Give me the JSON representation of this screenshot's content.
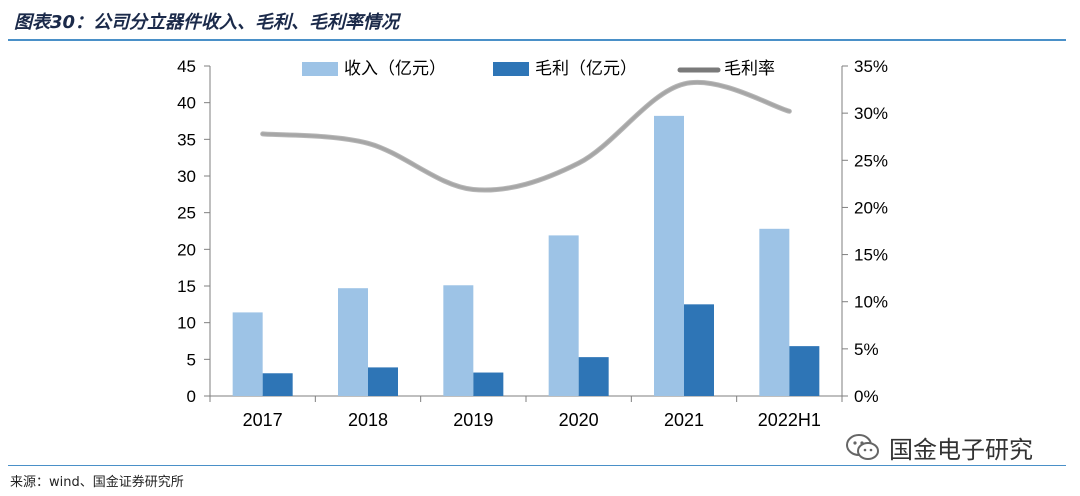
{
  "header": {
    "title": "图表30：公司分立器件收入、毛利、毛利率情况"
  },
  "footer": {
    "source": "来源：wind、国金证券研究所"
  },
  "watermark": {
    "text": "国金电子研究",
    "icon": "wechat-icon"
  },
  "colors": {
    "revenue": "#9dc3e6",
    "gross_profit": "#2e75b6",
    "margin_line": "#a6a6a6",
    "rule": "#4a90c8"
  },
  "chart_data": {
    "type": "bar",
    "categories": [
      "2017",
      "2018",
      "2019",
      "2020",
      "2021",
      "2022H1"
    ],
    "series": [
      {
        "name": "收入（亿元）",
        "type": "bar",
        "axis": "left",
        "values": [
          11.4,
          14.7,
          15.1,
          21.9,
          38.2,
          22.8
        ]
      },
      {
        "name": "毛利（亿元）",
        "type": "bar",
        "axis": "left",
        "values": [
          3.1,
          3.9,
          3.2,
          5.3,
          12.5,
          6.8
        ]
      },
      {
        "name": "毛利率",
        "type": "line",
        "axis": "right",
        "values": [
          0.278,
          0.268,
          0.219,
          0.247,
          0.331,
          0.302
        ]
      }
    ],
    "left_axis": {
      "min": 0,
      "max": 45,
      "step": 5,
      "ticks": [
        "0",
        "5",
        "10",
        "15",
        "20",
        "25",
        "30",
        "35",
        "40",
        "45"
      ]
    },
    "right_axis": {
      "min": 0,
      "max": 0.35,
      "step": 0.05,
      "ticks": [
        "0%",
        "5%",
        "10%",
        "15%",
        "20%",
        "25%",
        "30%",
        "35%"
      ]
    },
    "legend_position": "top",
    "grid": false
  }
}
